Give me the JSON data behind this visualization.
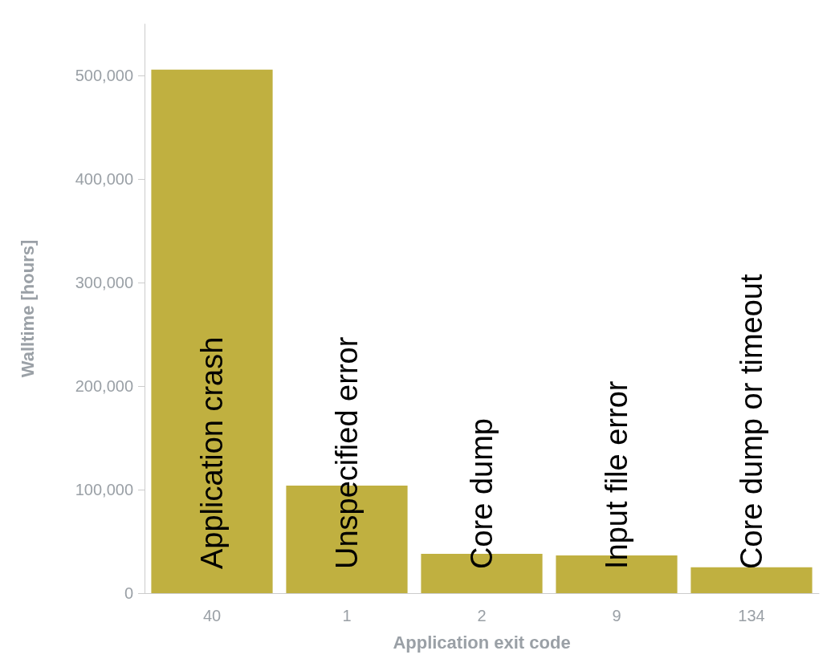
{
  "chart_data": {
    "type": "bar",
    "xlabel": "Application exit code",
    "ylabel": "Walltime [hours]",
    "categories": [
      "40",
      "1",
      "2",
      "9",
      "134"
    ],
    "values": [
      506000,
      104000,
      38000,
      36500,
      25000
    ],
    "color": "#c0b040",
    "ylim": [
      0,
      550000
    ],
    "yticks": [
      0,
      {
        "value": 100000,
        "label": "100,000"
      },
      {
        "value": 200000,
        "label": "200,000"
      },
      {
        "value": 300000,
        "label": "300,000"
      },
      {
        "value": 400000,
        "label": "400,000"
      },
      {
        "value": 500000,
        "label": "500,000"
      }
    ],
    "grid": false,
    "annotations": [
      {
        "text": "Application crash",
        "x": "40",
        "y": 0
      },
      {
        "text": "Unspecified error",
        "x": "1",
        "y": 0
      },
      {
        "text": "Core dump",
        "x": "2",
        "y": 0
      },
      {
        "text": "Input file error",
        "x": "9",
        "y": 0
      },
      {
        "text": "Core dump or timeout",
        "x": "134",
        "y": 0
      }
    ]
  }
}
